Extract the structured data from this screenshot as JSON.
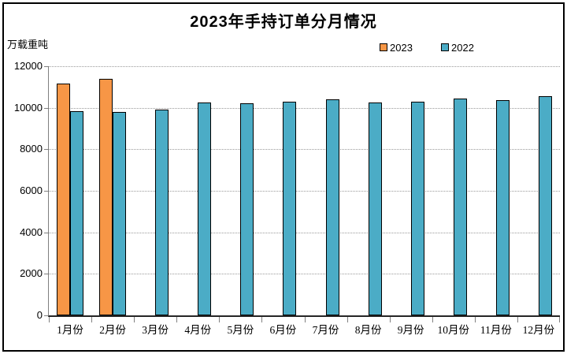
{
  "chart_data": {
    "type": "bar",
    "title": "2023年手持订单分月情况",
    "ylabel": "万载重吨",
    "xlabel": "",
    "categories": [
      "1月份",
      "2月份",
      "3月份",
      "4月份",
      "5月份",
      "6月份",
      "7月份",
      "8月份",
      "9月份",
      "10月份",
      "11月份",
      "12月份"
    ],
    "series": [
      {
        "name": "2023",
        "color": "#F79646",
        "values": [
          11150,
          11400,
          null,
          null,
          null,
          null,
          null,
          null,
          null,
          null,
          null,
          null
        ]
      },
      {
        "name": "2022",
        "color": "#4BACC6",
        "values": [
          9850,
          9800,
          9900,
          10250,
          10210,
          10310,
          10400,
          10250,
          10290,
          10440,
          10370,
          10560
        ]
      }
    ],
    "ylim": [
      0,
      12000
    ],
    "ytick_step": 2000,
    "yticks": [
      0,
      2000,
      4000,
      6000,
      8000,
      10000,
      12000
    ],
    "grid": "horizontal-dotted",
    "legend_position": "top",
    "bar_border_color": "#000000",
    "gridline_color": "#9a9a9a"
  }
}
